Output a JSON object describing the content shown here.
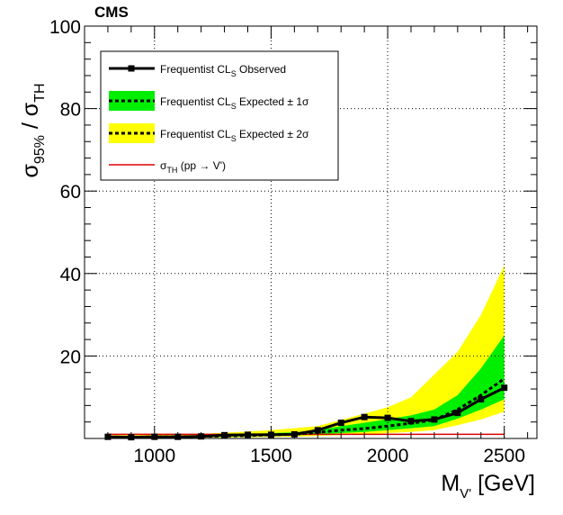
{
  "chart_data": {
    "type": "line",
    "title": "CMS",
    "xlabel": {
      "main": "M",
      "sub": "V'",
      "unit": " [GeV]"
    },
    "ylabel": {
      "sigma1": "σ",
      "sub1": "95%",
      "sep": " / ",
      "sigma2": "σ",
      "sub2": "TH"
    },
    "xlim": [
      700,
      2640
    ],
    "ylim": [
      0,
      100
    ],
    "xticks": [
      1000,
      1500,
      2000,
      2500
    ],
    "yticks": [
      20,
      40,
      60,
      80,
      100
    ],
    "grid": true,
    "legend_position": "top-left",
    "legend": [
      {
        "id": "observed",
        "text": "Frequentist CL",
        "sub": "S",
        "suffix": " Observed"
      },
      {
        "id": "exp1",
        "text": "Frequentist CL",
        "sub": "S",
        "suffix": "  Expected ± 1σ"
      },
      {
        "id": "exp2",
        "text": "Frequentist CL",
        "sub": "S",
        "suffix": "  Expected ± 2σ"
      },
      {
        "id": "theory",
        "text": "σ",
        "sub": "TH",
        "suffix": " (pp → V')"
      }
    ],
    "colors": {
      "observed": "#000000",
      "band1": "#00ee00",
      "band2": "#ffff00",
      "theory": "#dd0000",
      "grid": "#000000"
    },
    "x": [
      800,
      900,
      1000,
      1100,
      1200,
      1300,
      1400,
      1500,
      1600,
      1700,
      1800,
      1900,
      2000,
      2100,
      2200,
      2300,
      2400,
      2500
    ],
    "series": [
      {
        "id": "observed",
        "values": [
          0.4,
          0.3,
          0.4,
          0.4,
          0.5,
          0.8,
          0.9,
          0.9,
          1.0,
          2.0,
          3.8,
          5.2,
          5.0,
          4.2,
          4.6,
          6.2,
          9.5,
          12.3
        ]
      },
      {
        "id": "expected",
        "values": [
          0.3,
          0.3,
          0.4,
          0.4,
          0.5,
          0.6,
          0.7,
          0.9,
          1.0,
          1.5,
          2.0,
          2.4,
          3.0,
          3.7,
          4.5,
          7.0,
          10.5,
          14.5
        ]
      },
      {
        "id": "exp1_upper",
        "values": [
          0.5,
          0.5,
          0.6,
          0.6,
          0.7,
          0.9,
          1.1,
          1.3,
          1.5,
          2.0,
          3.0,
          3.8,
          4.7,
          5.6,
          7.0,
          10.5,
          17.0,
          25.0
        ]
      },
      {
        "id": "exp1_lower",
        "values": [
          0.2,
          0.2,
          0.2,
          0.3,
          0.3,
          0.4,
          0.5,
          0.6,
          0.7,
          1.0,
          1.3,
          1.6,
          2.0,
          2.5,
          3.0,
          4.8,
          7.0,
          9.5
        ]
      },
      {
        "id": "exp2_upper",
        "values": [
          0.8,
          0.8,
          0.9,
          1.0,
          1.1,
          1.4,
          1.7,
          2.0,
          2.5,
          3.0,
          4.5,
          6.0,
          7.6,
          10.0,
          15.5,
          21.0,
          30.0,
          42.0
        ]
      },
      {
        "id": "exp2_lower",
        "values": [
          0.1,
          0.1,
          0.1,
          0.2,
          0.2,
          0.2,
          0.3,
          0.4,
          0.4,
          0.6,
          0.8,
          1.0,
          1.3,
          1.6,
          2.0,
          3.2,
          4.6,
          6.5
        ]
      },
      {
        "id": "theory",
        "values": [
          1,
          1,
          1,
          1,
          1,
          1,
          1,
          1,
          1,
          1,
          1,
          1,
          1,
          1,
          1,
          1,
          1,
          1
        ]
      }
    ]
  }
}
